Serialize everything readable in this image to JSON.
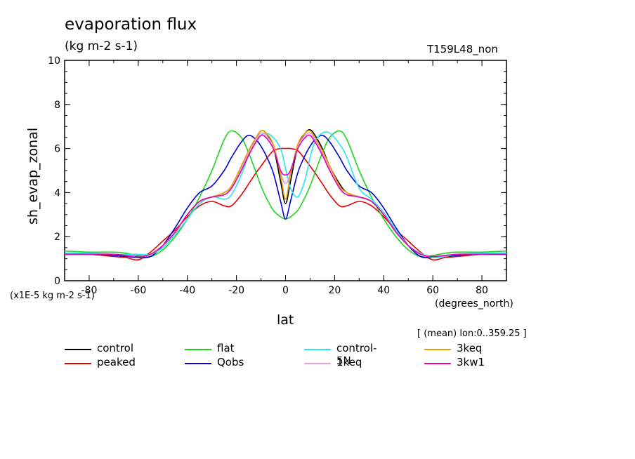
{
  "chart_data": {
    "type": "line",
    "title": "evaporation flux",
    "subtitle": "(kg m-2 s-1)",
    "run_label": "T159L48_non",
    "annotation": "[ (mean) lon:0..359.25 ]",
    "scale_note": "(x1E-5 kg m-2 s-1)",
    "xlabel": "lat",
    "xunits": "(degrees_north)",
    "ylabel": "sh_evap_zonal",
    "xlim": [
      -90,
      90
    ],
    "ylim": [
      0,
      10
    ],
    "xticks": [
      -80,
      -60,
      -40,
      -20,
      0,
      20,
      40,
      60,
      80
    ],
    "yticks": [
      0,
      2,
      4,
      6,
      8,
      10
    ],
    "grid": false,
    "legend_position": "bottom",
    "x": [
      -90,
      -80,
      -70,
      -65,
      -60,
      -55,
      -50,
      -45,
      -40,
      -35,
      -30,
      -25,
      -22,
      -18,
      -15,
      -12,
      -10,
      -8,
      -5,
      -2,
      0,
      2,
      5,
      8,
      10,
      12,
      15,
      18,
      22,
      25,
      30,
      35,
      40,
      45,
      50,
      55,
      60,
      65,
      70,
      80,
      90
    ],
    "series": [
      {
        "name": "control",
        "color": "#000000",
        "values": [
          1.2,
          1.2,
          1.2,
          1.15,
          1.1,
          1.2,
          1.6,
          2.2,
          3.0,
          3.6,
          3.8,
          4.0,
          4.3,
          5.2,
          5.9,
          6.5,
          6.8,
          6.7,
          6.1,
          4.5,
          3.5,
          4.5,
          6.1,
          6.7,
          6.85,
          6.6,
          6.0,
          5.2,
          4.4,
          4.0,
          3.8,
          3.6,
          3.0,
          2.2,
          1.6,
          1.2,
          1.1,
          1.15,
          1.2,
          1.2,
          1.2
        ]
      },
      {
        "name": "peaked",
        "color": "#e80000",
        "values": [
          1.2,
          1.2,
          1.1,
          1.05,
          0.95,
          1.3,
          1.8,
          2.3,
          2.9,
          3.4,
          3.6,
          3.4,
          3.4,
          3.9,
          4.4,
          4.9,
          5.2,
          5.5,
          5.9,
          6.0,
          6.0,
          6.0,
          5.9,
          5.5,
          5.2,
          4.9,
          4.4,
          3.9,
          3.4,
          3.4,
          3.6,
          3.4,
          2.9,
          2.3,
          1.8,
          1.3,
          0.95,
          1.05,
          1.1,
          1.2,
          1.2
        ]
      },
      {
        "name": "flat",
        "color": "#1ed31e",
        "values": [
          1.35,
          1.3,
          1.3,
          1.25,
          1.15,
          1.1,
          1.4,
          2.0,
          2.8,
          3.8,
          5.0,
          6.4,
          6.8,
          6.5,
          5.8,
          4.9,
          4.3,
          3.8,
          3.2,
          2.9,
          2.8,
          2.9,
          3.2,
          3.8,
          4.3,
          4.9,
          5.8,
          6.5,
          6.8,
          6.4,
          5.0,
          3.8,
          2.8,
          2.0,
          1.4,
          1.1,
          1.15,
          1.25,
          1.3,
          1.3,
          1.35
        ]
      },
      {
        "name": "Qobs",
        "color": "#0000d8",
        "values": [
          1.2,
          1.2,
          1.15,
          1.1,
          1.05,
          1.1,
          1.6,
          2.4,
          3.3,
          4.0,
          4.3,
          5.0,
          5.6,
          6.3,
          6.6,
          6.4,
          6.1,
          5.7,
          4.9,
          3.6,
          2.8,
          3.6,
          4.9,
          5.7,
          6.1,
          6.4,
          6.6,
          6.3,
          5.6,
          5.0,
          4.3,
          4.0,
          3.3,
          2.4,
          1.6,
          1.1,
          1.05,
          1.1,
          1.15,
          1.2,
          1.2
        ]
      },
      {
        "name": "control-5N",
        "color": "#28e6f0",
        "values": [
          1.25,
          1.25,
          1.2,
          1.2,
          1.2,
          1.2,
          1.5,
          2.1,
          2.8,
          3.5,
          3.8,
          3.7,
          3.9,
          4.8,
          5.7,
          6.3,
          6.6,
          6.7,
          6.5,
          6.0,
          5.1,
          4.2,
          3.8,
          4.6,
          5.6,
          6.3,
          6.7,
          6.7,
          6.2,
          5.6,
          4.2,
          3.7,
          3.1,
          2.3,
          1.6,
          1.25,
          1.05,
          1.1,
          1.2,
          1.25,
          1.25
        ]
      },
      {
        "name": "1keq",
        "color": "#e6a0e6",
        "values": [
          1.2,
          1.2,
          1.2,
          1.15,
          1.1,
          1.2,
          1.6,
          2.2,
          3.0,
          3.6,
          3.8,
          4.0,
          4.3,
          5.1,
          5.8,
          6.4,
          6.7,
          6.6,
          6.1,
          4.9,
          4.4,
          4.9,
          6.1,
          6.6,
          6.7,
          6.4,
          5.8,
          5.1,
          4.3,
          4.0,
          3.8,
          3.6,
          3.0,
          2.2,
          1.6,
          1.2,
          1.1,
          1.15,
          1.2,
          1.2,
          1.2
        ]
      },
      {
        "name": "3keq",
        "color": "#e6a800",
        "values": [
          1.2,
          1.2,
          1.2,
          1.15,
          1.1,
          1.2,
          1.6,
          2.2,
          3.0,
          3.6,
          3.8,
          4.0,
          4.3,
          5.2,
          5.9,
          6.5,
          6.8,
          6.7,
          6.2,
          4.8,
          3.7,
          4.8,
          6.2,
          6.7,
          6.8,
          6.5,
          5.9,
          5.2,
          4.3,
          4.0,
          3.8,
          3.6,
          3.0,
          2.2,
          1.6,
          1.2,
          1.1,
          1.15,
          1.2,
          1.2,
          1.2
        ]
      },
      {
        "name": "3kw1",
        "color": "#e600b4",
        "values": [
          1.2,
          1.2,
          1.2,
          1.15,
          1.1,
          1.2,
          1.6,
          2.2,
          3.0,
          3.6,
          3.8,
          3.9,
          4.2,
          5.0,
          5.7,
          6.3,
          6.6,
          6.5,
          6.0,
          5.0,
          4.8,
          5.0,
          6.0,
          6.5,
          6.6,
          6.3,
          5.7,
          5.0,
          4.2,
          3.9,
          3.8,
          3.6,
          3.0,
          2.2,
          1.6,
          1.2,
          1.1,
          1.15,
          1.2,
          1.2,
          1.2
        ]
      }
    ]
  }
}
